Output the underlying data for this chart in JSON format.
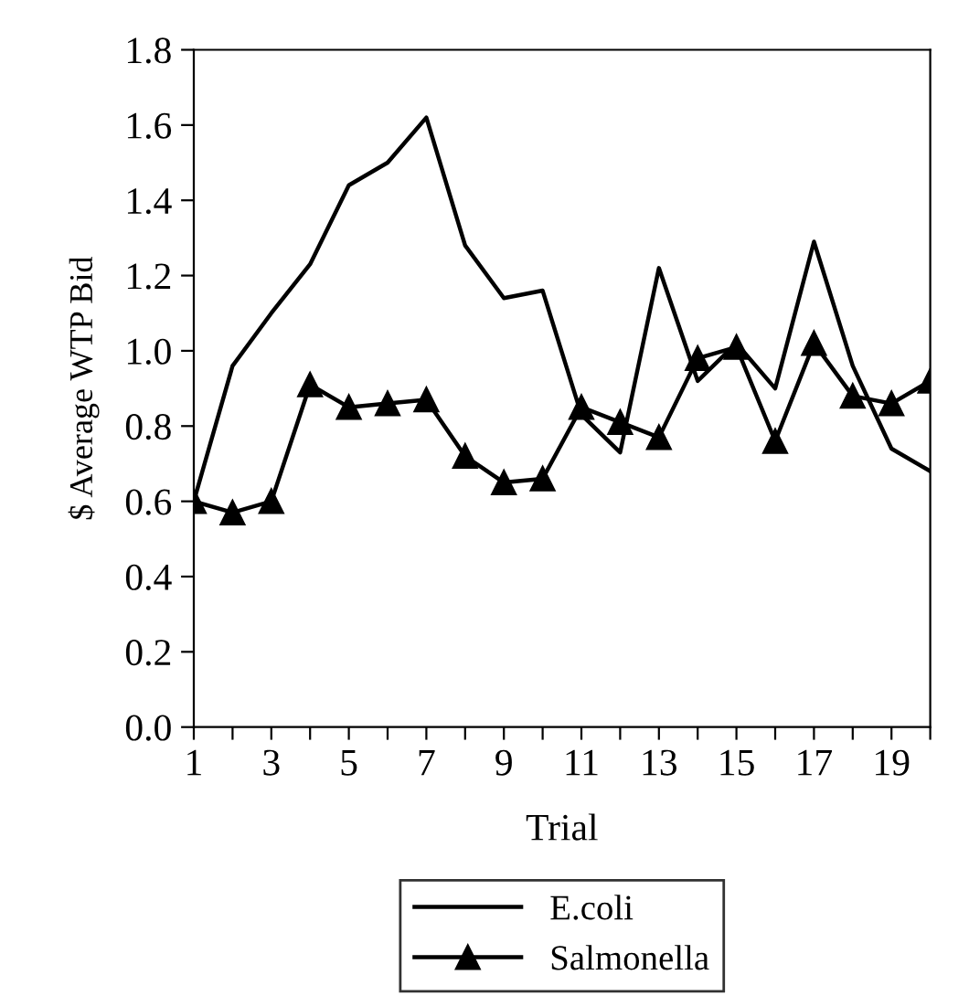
{
  "chart_data": {
    "type": "line",
    "xlabel": "Trial",
    "ylabel": "$ Average WTP Bid",
    "categories": [
      "1",
      null,
      "3",
      null,
      "5",
      null,
      "7",
      null,
      "9",
      null,
      "11",
      null,
      "13",
      null,
      "15",
      null,
      "17",
      null,
      "19",
      null
    ],
    "series": [
      {
        "name": "E.coli",
        "color": "#000000",
        "marker": "none",
        "values": [
          0.6,
          0.96,
          1.1,
          1.23,
          1.44,
          1.5,
          1.62,
          1.28,
          1.14,
          1.16,
          0.83,
          0.73,
          1.22,
          0.92,
          1.02,
          0.9,
          1.29,
          0.96,
          0.74,
          0.68
        ]
      },
      {
        "name": "Salmonella",
        "color": "#000000",
        "marker": "triangle",
        "values": [
          0.6,
          0.57,
          0.6,
          0.91,
          0.85,
          0.86,
          0.87,
          0.72,
          0.65,
          0.66,
          0.85,
          0.81,
          0.77,
          0.98,
          1.01,
          0.76,
          1.02,
          0.88,
          0.86,
          0.92
        ]
      }
    ],
    "ylim": [
      0,
      1.8
    ],
    "yticks": [
      {
        "value": 0,
        "label": "0.0"
      },
      {
        "value": 0.2,
        "label": "0.2"
      },
      {
        "value": 0.4,
        "label": "0.4"
      },
      {
        "value": 0.6,
        "label": "0.6"
      },
      {
        "value": 0.8,
        "label": "0.8"
      },
      {
        "value": 1.0,
        "label": "1.0"
      },
      {
        "value": 1.2,
        "label": "1.2"
      },
      {
        "value": 1.4,
        "label": "1.4"
      },
      {
        "value": 1.6,
        "label": "1.6"
      },
      {
        "value": 1.8,
        "label": "1.8"
      }
    ],
    "grid": false,
    "legend": "bottom"
  }
}
